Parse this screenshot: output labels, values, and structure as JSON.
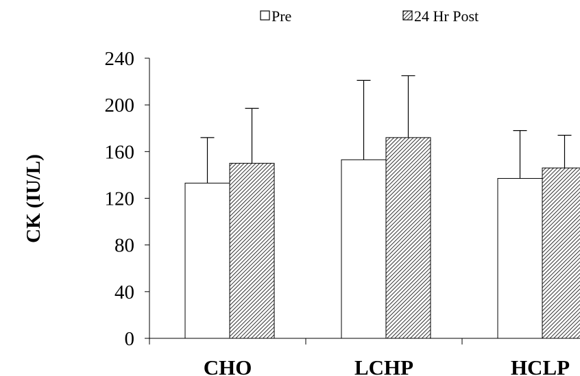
{
  "chart_data": {
    "type": "bar",
    "title": "",
    "xlabel": "",
    "ylabel": "CK (IU/L)",
    "ylim": [
      0,
      240
    ],
    "yticks": [
      0,
      40,
      80,
      120,
      160,
      200,
      240
    ],
    "grid": false,
    "legend_position": "top",
    "categories": [
      "CHO",
      "LCHP",
      "HCLP"
    ],
    "series": [
      {
        "name": "Pre",
        "fill": "white",
        "values": [
          133,
          153,
          137
        ],
        "error_upper": [
          39,
          68,
          41
        ]
      },
      {
        "name": "24 Hr Post",
        "fill": "hatched",
        "values": [
          150,
          172,
          146
        ],
        "error_upper": [
          47,
          53,
          28
        ]
      }
    ]
  }
}
